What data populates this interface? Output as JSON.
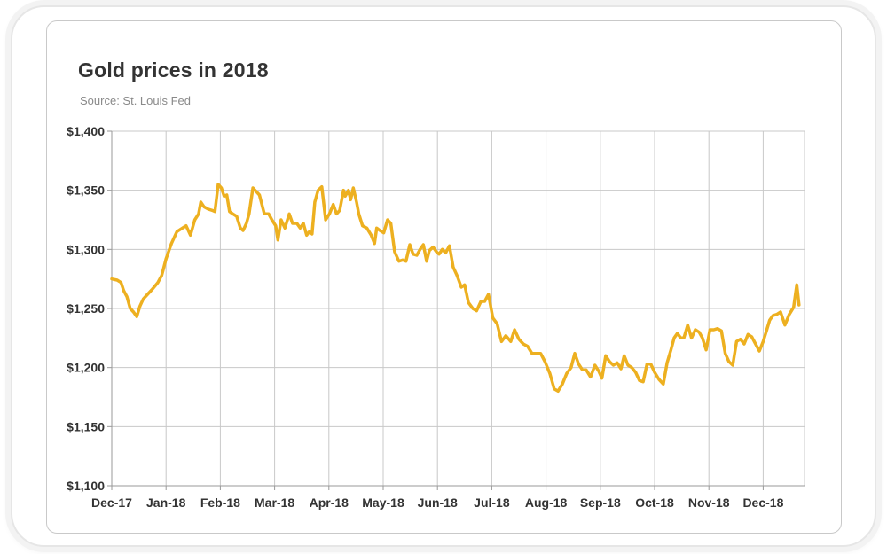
{
  "chart_data": {
    "type": "line",
    "title": "Gold prices in 2018",
    "subtitle": "Source: St. Louis Fed",
    "xlabel": "",
    "ylabel": "",
    "ylim": [
      1100,
      1400
    ],
    "y_ticks": [
      1100,
      1150,
      1200,
      1250,
      1300,
      1350,
      1400
    ],
    "y_tick_labels": [
      "$1,100",
      "$1,150",
      "$1,200",
      "$1,250",
      "$1,300",
      "$1,350",
      "$1,400"
    ],
    "x_tick_labels": [
      "Dec-17",
      "Jan-18",
      "Feb-18",
      "Mar-18",
      "Apr-18",
      "May-18",
      "Jun-18",
      "Jul-18",
      "Aug-18",
      "Sep-18",
      "Oct-18",
      "Nov-18",
      "Dec-18"
    ],
    "grid": true,
    "line_color": "#EDB020",
    "series": [
      {
        "x": [
          0,
          0.1,
          0.17,
          0.22,
          0.28,
          0.34,
          0.4,
          0.46,
          0.52,
          0.58,
          0.66,
          0.74,
          0.85,
          0.92,
          0.95,
          1.0,
          1.1,
          1.2,
          1.3,
          1.37,
          1.45,
          1.53,
          1.6,
          1.64,
          1.7,
          1.78,
          1.85,
          1.9,
          1.96,
          2.02,
          2.07,
          2.12,
          2.17,
          2.23,
          2.3,
          2.37,
          2.42,
          2.48,
          2.53,
          2.6,
          2.64,
          2.72,
          2.81,
          2.89,
          2.95,
          3.02,
          3.06,
          3.12,
          3.19,
          3.27,
          3.33,
          3.41,
          3.47,
          3.53,
          3.59,
          3.64,
          3.69,
          3.74,
          3.8,
          3.87,
          3.94,
          4.01,
          4.08,
          4.14,
          4.2,
          4.27,
          4.3,
          4.36,
          4.4,
          4.45,
          4.51,
          4.55,
          4.62,
          4.7,
          4.78,
          4.84,
          4.88,
          4.94,
          5.01,
          5.08,
          5.14,
          5.21,
          5.29,
          5.36,
          5.42,
          5.49,
          5.55,
          5.62,
          5.68,
          5.74,
          5.8,
          5.85,
          5.92,
          5.98,
          6.03,
          6.09,
          6.15,
          6.22,
          6.29,
          6.36,
          6.44,
          6.5,
          6.57,
          6.65,
          6.72,
          6.8,
          6.87,
          6.94,
          7.02,
          7.1,
          7.18,
          7.26,
          7.35,
          7.42,
          7.5,
          7.58,
          7.66,
          7.74,
          7.82,
          7.9,
          7.98,
          8.07,
          8.15,
          8.22,
          8.3,
          8.38,
          8.46,
          8.53,
          8.6,
          8.67,
          8.74,
          8.82,
          8.9,
          8.97,
          9.03,
          9.1,
          9.17,
          9.24,
          9.31,
          9.38,
          9.44,
          9.51,
          9.58,
          9.65,
          9.72,
          9.79,
          9.86,
          9.93,
          10.0,
          10.08,
          10.16,
          10.23,
          10.3,
          10.36,
          10.42,
          10.48,
          10.54,
          10.61,
          10.68,
          10.75,
          10.82,
          10.88,
          10.95,
          11.02,
          11.09,
          11.16,
          11.23,
          11.3,
          11.37,
          11.44,
          11.51,
          11.58,
          11.65,
          11.72,
          11.79,
          11.86,
          11.93,
          12.0,
          12.06,
          12.12,
          12.18,
          12.25,
          12.32,
          12.4,
          12.48,
          12.56,
          12.62,
          12.66
        ],
        "values": [
          1275,
          1274,
          1272,
          1265,
          1260,
          1250,
          1247,
          1243,
          1252,
          1258,
          1262,
          1266,
          1272,
          1278,
          1283,
          1292,
          1305,
          1315,
          1318,
          1320,
          1312,
          1325,
          1330,
          1340,
          1336,
          1334,
          1333,
          1332,
          1355,
          1352,
          1345,
          1346,
          1332,
          1330,
          1328,
          1318,
          1316,
          1322,
          1330,
          1352,
          1350,
          1346,
          1330,
          1330,
          1325,
          1320,
          1308,
          1325,
          1318,
          1330,
          1322,
          1322,
          1318,
          1322,
          1312,
          1315,
          1313,
          1340,
          1350,
          1353,
          1325,
          1330,
          1338,
          1330,
          1333,
          1350,
          1345,
          1350,
          1342,
          1352,
          1340,
          1330,
          1320,
          1318,
          1312,
          1305,
          1318,
          1316,
          1314,
          1325,
          1322,
          1298,
          1290,
          1291,
          1290,
          1304,
          1296,
          1295,
          1300,
          1304,
          1290,
          1299,
          1302,
          1298,
          1296,
          1300,
          1297,
          1303,
          1285,
          1278,
          1268,
          1270,
          1255,
          1250,
          1248,
          1256,
          1256,
          1262,
          1242,
          1237,
          1222,
          1227,
          1222,
          1232,
          1224,
          1220,
          1218,
          1212,
          1212,
          1212,
          1205,
          1195,
          1182,
          1180,
          1186,
          1195,
          1200,
          1212,
          1203,
          1198,
          1198,
          1192,
          1202,
          1197,
          1191,
          1210,
          1205,
          1202,
          1204,
          1199,
          1210,
          1202,
          1200,
          1196,
          1189,
          1188,
          1203,
          1203,
          1196,
          1190,
          1186,
          1204,
          1215,
          1225,
          1229,
          1225,
          1225,
          1236,
          1225,
          1232,
          1230,
          1225,
          1215,
          1232,
          1232,
          1233,
          1231,
          1212,
          1205,
          1202,
          1222,
          1224,
          1220,
          1228,
          1226,
          1220,
          1214,
          1222,
          1231,
          1240,
          1244,
          1245,
          1247,
          1236,
          1245,
          1251,
          1270,
          1253
        ]
      }
    ]
  }
}
